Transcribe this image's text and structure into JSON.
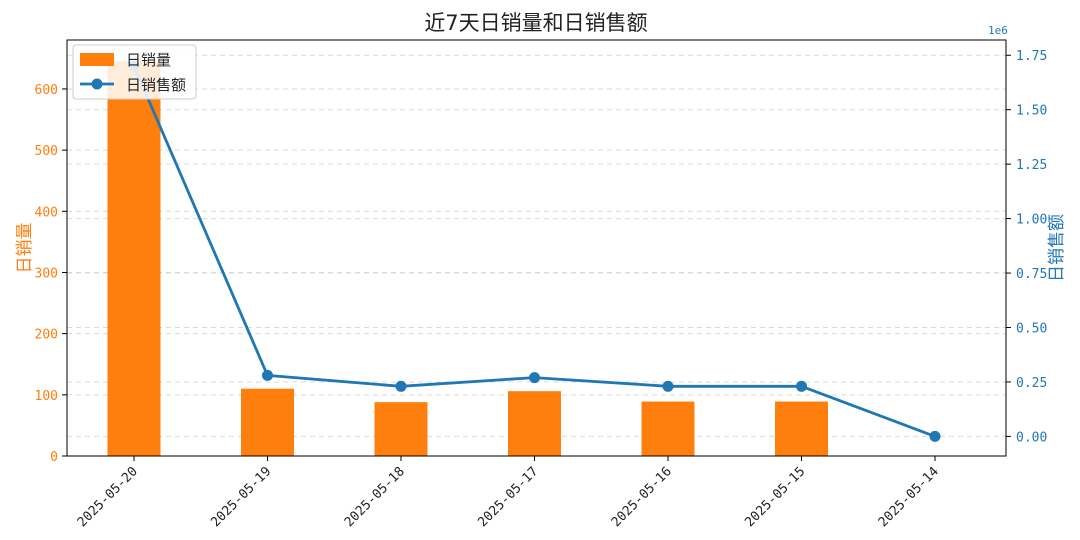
{
  "chart_data": {
    "type": "bar",
    "title": "近7天日销量和日销售额",
    "categories": [
      "2025-05-20",
      "2025-05-19",
      "2025-05-18",
      "2025-05-17",
      "2025-05-16",
      "2025-05-15",
      "2025-05-14"
    ],
    "series": [
      {
        "name": "日销量",
        "type": "bar",
        "axis": "left",
        "color": "#ff7f0e",
        "values": [
          645,
          110,
          88,
          106,
          89,
          89,
          0
        ]
      },
      {
        "name": "日销售额",
        "type": "line",
        "axis": "right",
        "color": "#1f77b4",
        "values": [
          1700000,
          280000,
          230000,
          270000,
          230000,
          230000,
          0
        ]
      }
    ],
    "left_axis": {
      "label": "日销量",
      "color": "#ff7f0e",
      "range": [
        0,
        680
      ],
      "ticks": [
        0,
        100,
        200,
        300,
        400,
        500,
        600
      ],
      "tick_labels": [
        "0",
        "100",
        "200",
        "300",
        "400",
        "500",
        "600"
      ]
    },
    "right_axis": {
      "label": "日销售额",
      "color": "#1f77b4",
      "range": [
        -90000,
        1820000
      ],
      "ticks": [
        0,
        250000,
        500000,
        750000,
        1000000,
        1250000,
        1500000,
        1750000
      ],
      "tick_labels": [
        "0.00",
        "0.25",
        "0.50",
        "0.75",
        "1.00",
        "1.25",
        "1.50",
        "1.75"
      ],
      "offset_label": "1e6"
    },
    "grid": true,
    "legend_position": "top-left"
  }
}
